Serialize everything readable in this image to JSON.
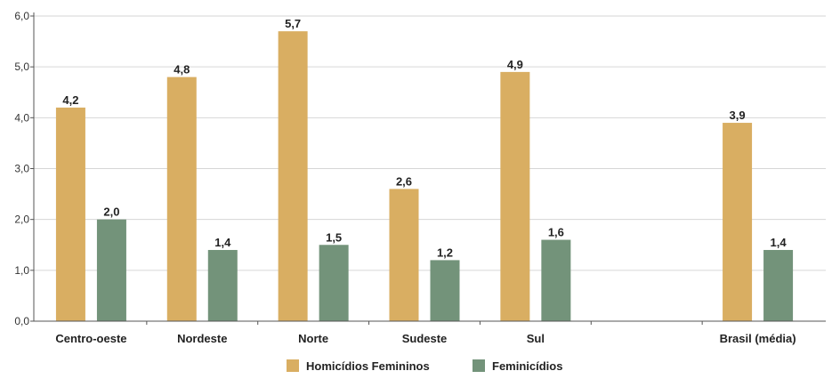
{
  "colors": {
    "homicidios": "#D9AE62",
    "feminicidios": "#73937A",
    "grid": "#d6d6d6",
    "axis": "#555555"
  },
  "chart_data": {
    "type": "bar",
    "categories": [
      "Centro-oeste",
      "Nordeste",
      "Norte",
      "Sudeste",
      "Sul",
      "",
      "Brasil (média)"
    ],
    "series": [
      {
        "name": "Homicídios Femininos",
        "values": [
          4.2,
          4.8,
          5.7,
          2.6,
          4.9,
          null,
          3.9
        ],
        "labels": [
          "4,2",
          "4,8",
          "5,7",
          "2,6",
          "4,9",
          "",
          "3,9"
        ]
      },
      {
        "name": "Feminicídios",
        "values": [
          2.0,
          1.4,
          1.5,
          1.2,
          1.6,
          null,
          1.4
        ],
        "labels": [
          "2,0",
          "1,4",
          "1,5",
          "1,2",
          "1,6",
          "",
          "1,4"
        ]
      }
    ],
    "ylim": [
      0,
      6
    ],
    "yticks": [
      "0,0",
      "1,0",
      "2,0",
      "3,0",
      "4,0",
      "5,0",
      "6,0"
    ],
    "grid": true,
    "legend_position": "bottom-center"
  }
}
